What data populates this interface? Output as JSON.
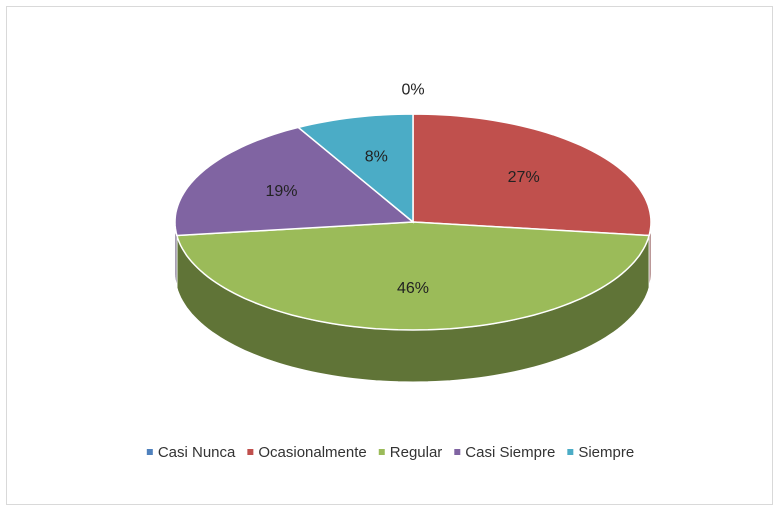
{
  "chart_data": {
    "type": "pie3d",
    "categories": [
      "Casi Nunca",
      "Ocasionalmente",
      "Regular",
      "Casi Siempre",
      "Siempre"
    ],
    "values": [
      0,
      27,
      46,
      19,
      8
    ],
    "value_labels": [
      "0%",
      "27%",
      "46%",
      "19%",
      "8%"
    ],
    "colors": [
      "#4f81bd",
      "#c0504d",
      "#9bbb59",
      "#8064a2",
      "#4bacc6"
    ],
    "legend": "bottom"
  }
}
